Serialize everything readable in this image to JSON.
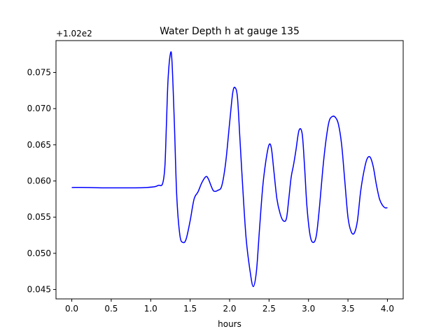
{
  "chart_data": {
    "type": "line",
    "title": "Water Depth h at gauge 135",
    "xlabel": "hours",
    "ylabel": "",
    "offset_text": "+1.02e2",
    "offset": 102,
    "xlim": [
      -0.2,
      4.2
    ],
    "ylim": [
      0.0437,
      0.0794
    ],
    "x_ticks": [
      0.0,
      0.5,
      1.0,
      1.5,
      2.0,
      2.5,
      3.0,
      3.5,
      4.0
    ],
    "x_tick_labels": [
      "0.0",
      "0.5",
      "1.0",
      "1.5",
      "2.0",
      "2.5",
      "3.0",
      "3.5",
      "4.0"
    ],
    "y_ticks": [
      0.045,
      0.05,
      0.055,
      0.06,
      0.065,
      0.07,
      0.075
    ],
    "y_tick_labels": [
      "0.045",
      "0.050",
      "0.055",
      "0.060",
      "0.065",
      "0.070",
      "0.075"
    ],
    "grid": false,
    "colors": {
      "line": "#0000ff",
      "axes": "#000000"
    },
    "series": [
      {
        "x": [
          0.0,
          0.2,
          0.4,
          0.6,
          0.8,
          0.95,
          1.05,
          1.1,
          1.15,
          1.18,
          1.2,
          1.22,
          1.25,
          1.27,
          1.3,
          1.33,
          1.37,
          1.41,
          1.45,
          1.5,
          1.55,
          1.6,
          1.65,
          1.7,
          1.73,
          1.77,
          1.8,
          1.85,
          1.9,
          1.95,
          2.0,
          2.04,
          2.07,
          2.1,
          2.13,
          2.17,
          2.21,
          2.26,
          2.3,
          2.34,
          2.38,
          2.42,
          2.46,
          2.5,
          2.53,
          2.56,
          2.6,
          2.64,
          2.68,
          2.72,
          2.75,
          2.78,
          2.81,
          2.84,
          2.88,
          2.92,
          2.95,
          2.98,
          3.02,
          3.06,
          3.1,
          3.14,
          3.18,
          3.22,
          3.26,
          3.3,
          3.34,
          3.38,
          3.42,
          3.46,
          3.5,
          3.54,
          3.58,
          3.62,
          3.66,
          3.7,
          3.74,
          3.78,
          3.82,
          3.86,
          3.9,
          3.94,
          3.97,
          4.0
        ],
        "y": [
          0.0591,
          0.0591,
          0.05905,
          0.05905,
          0.05905,
          0.0591,
          0.0592,
          0.0594,
          0.0596,
          0.062,
          0.068,
          0.074,
          0.0776,
          0.0765,
          0.068,
          0.058,
          0.0525,
          0.0515,
          0.052,
          0.0545,
          0.0575,
          0.0585,
          0.0598,
          0.0606,
          0.0603,
          0.0592,
          0.0586,
          0.0587,
          0.0593,
          0.0625,
          0.068,
          0.0722,
          0.0729,
          0.0715,
          0.066,
          0.0585,
          0.052,
          0.0475,
          0.0454,
          0.0475,
          0.0535,
          0.0592,
          0.0628,
          0.065,
          0.0645,
          0.0615,
          0.0575,
          0.0555,
          0.0545,
          0.0548,
          0.0575,
          0.0605,
          0.0622,
          0.0642,
          0.067,
          0.0665,
          0.062,
          0.0565,
          0.0525,
          0.0515,
          0.0525,
          0.0565,
          0.0615,
          0.0655,
          0.0682,
          0.0689,
          0.0688,
          0.0678,
          0.065,
          0.06,
          0.055,
          0.053,
          0.0528,
          0.0545,
          0.0585,
          0.0612,
          0.063,
          0.0633,
          0.062,
          0.0595,
          0.0575,
          0.0566,
          0.0563,
          0.0563
        ]
      }
    ]
  }
}
